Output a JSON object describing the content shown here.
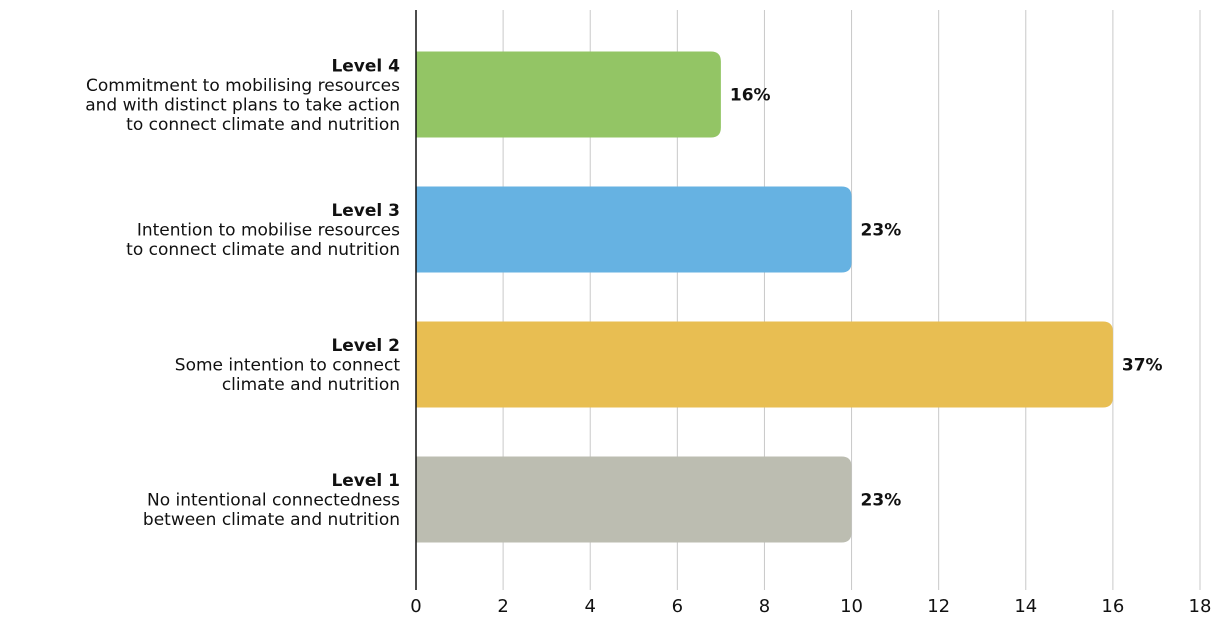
{
  "chart_data": {
    "type": "bar",
    "orientation": "horizontal",
    "xlim": [
      0,
      18
    ],
    "x_ticks": [
      0,
      2,
      4,
      6,
      8,
      10,
      12,
      14,
      16,
      18
    ],
    "grid": true,
    "legend": "none",
    "categories": [
      {
        "level": "Level 4",
        "description": [
          "Commitment to mobilising resources",
          "and with distinct plans to take action",
          "to connect climate and nutrition"
        ],
        "value": 7,
        "label": "16%",
        "color": "#93c565"
      },
      {
        "level": "Level 3",
        "description": [
          "Intention to mobilise resources",
          "to connect climate and nutrition"
        ],
        "value": 10,
        "label": "23%",
        "color": "#66b2e2"
      },
      {
        "level": "Level 2",
        "description": [
          "Some intention to connect",
          "climate and nutrition"
        ],
        "value": 16,
        "label": "37%",
        "color": "#e8be52"
      },
      {
        "level": "Level 1",
        "description": [
          "No intentional connectedness",
          "between climate and nutrition"
        ],
        "value": 10,
        "label": "23%",
        "color": "#bcbdb1"
      }
    ]
  }
}
